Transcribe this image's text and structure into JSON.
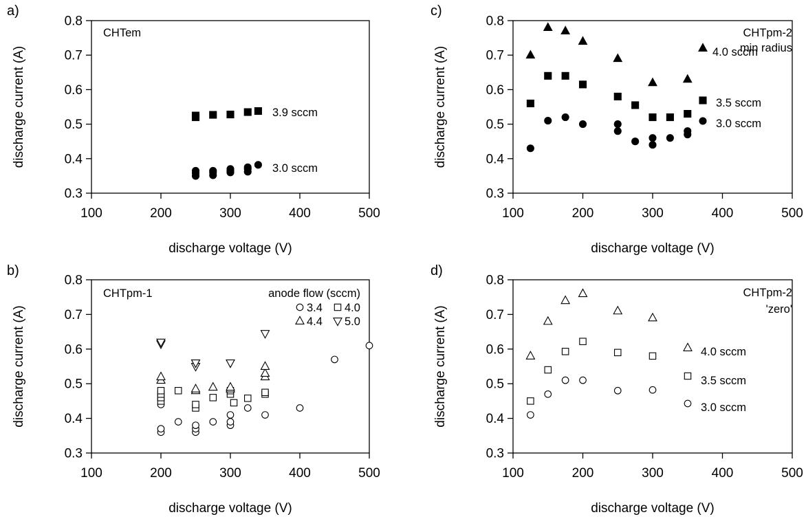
{
  "chart_data": [
    {
      "panel": "a)",
      "type": "scatter",
      "inset_title": [
        "CHTem"
      ],
      "xlabel": "discharge voltage (V)",
      "ylabel": "discharge current (A)",
      "xlim": [
        100,
        500
      ],
      "ylim": [
        0.3,
        0.8
      ],
      "xticks": [
        "100",
        "200",
        "300",
        "400",
        "500"
      ],
      "yticks": [
        "0.3",
        "0.4",
        "0.5",
        "0.6",
        "0.7",
        "0.8"
      ],
      "series": [
        {
          "label": "3.9 sccm",
          "marker": "filled-square",
          "points": [
            [
              250,
              0.52
            ],
            [
              250,
              0.525
            ],
            [
              275,
              0.527
            ],
            [
              300,
              0.528
            ],
            [
              325,
              0.535
            ],
            [
              340,
              0.538
            ]
          ]
        },
        {
          "label": "3.0 sccm",
          "marker": "filled-circle",
          "points": [
            [
              250,
              0.35
            ],
            [
              250,
              0.358
            ],
            [
              250,
              0.365
            ],
            [
              275,
              0.352
            ],
            [
              275,
              0.36
            ],
            [
              275,
              0.365
            ],
            [
              300,
              0.36
            ],
            [
              300,
              0.365
            ],
            [
              300,
              0.37
            ],
            [
              325,
              0.362
            ],
            [
              325,
              0.37
            ],
            [
              325,
              0.375
            ],
            [
              340,
              0.382
            ]
          ]
        }
      ]
    },
    {
      "panel": "b)",
      "type": "scatter",
      "inset_title": [
        "CHTpm-1"
      ],
      "legend_title": "anode flow (sccm)",
      "xlabel": "discharge voltage (V)",
      "ylabel": "discharge current (A)",
      "xlim": [
        100,
        500
      ],
      "ylim": [
        0.3,
        0.8
      ],
      "xticks": [
        "100",
        "200",
        "300",
        "400",
        "500"
      ],
      "yticks": [
        "0.3",
        "0.4",
        "0.5",
        "0.6",
        "0.7",
        "0.8"
      ],
      "series": [
        {
          "label": "3.4",
          "marker": "open-circle",
          "points": [
            [
              200,
              0.36
            ],
            [
              200,
              0.37
            ],
            [
              200,
              0.44
            ],
            [
              225,
              0.39
            ],
            [
              250,
              0.36
            ],
            [
              250,
              0.37
            ],
            [
              250,
              0.38
            ],
            [
              275,
              0.39
            ],
            [
              300,
              0.38
            ],
            [
              300,
              0.39
            ],
            [
              300,
              0.41
            ],
            [
              325,
              0.43
            ],
            [
              350,
              0.41
            ],
            [
              400,
              0.43
            ],
            [
              450,
              0.57
            ],
            [
              500,
              0.61
            ]
          ]
        },
        {
          "label": "4.0",
          "marker": "open-square",
          "points": [
            [
              200,
              0.45
            ],
            [
              200,
              0.46
            ],
            [
              200,
              0.47
            ],
            [
              200,
              0.48
            ],
            [
              225,
              0.48
            ],
            [
              250,
              0.43
            ],
            [
              250,
              0.44
            ],
            [
              275,
              0.46
            ],
            [
              300,
              0.47
            ],
            [
              300,
              0.48
            ],
            [
              305,
              0.445
            ],
            [
              325,
              0.458
            ],
            [
              350,
              0.47
            ],
            [
              350,
              0.475
            ]
          ]
        },
        {
          "label": "4.4",
          "marker": "open-triangle-up",
          "points": [
            [
              200,
              0.51
            ],
            [
              200,
              0.52
            ],
            [
              250,
              0.48
            ],
            [
              250,
              0.485
            ],
            [
              275,
              0.49
            ],
            [
              300,
              0.485
            ],
            [
              300,
              0.49
            ],
            [
              350,
              0.52
            ],
            [
              350,
              0.53
            ],
            [
              350,
              0.55
            ]
          ]
        },
        {
          "label": "5.0",
          "marker": "open-triangle-down",
          "points": [
            [
              200,
              0.615
            ],
            [
              200,
              0.62
            ],
            [
              250,
              0.55
            ],
            [
              250,
              0.56
            ],
            [
              300,
              0.56
            ],
            [
              350,
              0.645
            ]
          ]
        }
      ]
    },
    {
      "panel": "c)",
      "type": "scatter",
      "inset_title": [
        "CHTpm-2",
        "min radius"
      ],
      "xlabel": "discharge voltage (V)",
      "ylabel": "discharge current (A)",
      "xlim": [
        100,
        500
      ],
      "ylim": [
        0.3,
        0.8
      ],
      "xticks": [
        "100",
        "200",
        "300",
        "400",
        "500"
      ],
      "yticks": [
        "0.3",
        "0.4",
        "0.5",
        "0.6",
        "0.7",
        "0.8"
      ],
      "series": [
        {
          "label": "4.0 sccm",
          "marker": "filled-triangle-up",
          "points": [
            [
              125,
              0.7
            ],
            [
              150,
              0.78
            ],
            [
              175,
              0.77
            ],
            [
              200,
              0.74
            ],
            [
              250,
              0.69
            ],
            [
              300,
              0.62
            ],
            [
              350,
              0.63
            ]
          ]
        },
        {
          "label": "3.5 sccm",
          "marker": "filled-square",
          "points": [
            [
              125,
              0.56
            ],
            [
              150,
              0.64
            ],
            [
              175,
              0.64
            ],
            [
              200,
              0.615
            ],
            [
              250,
              0.58
            ],
            [
              275,
              0.555
            ],
            [
              300,
              0.52
            ],
            [
              325,
              0.52
            ],
            [
              350,
              0.53
            ]
          ]
        },
        {
          "label": "3.0 sccm",
          "marker": "filled-circle",
          "points": [
            [
              125,
              0.43
            ],
            [
              150,
              0.51
            ],
            [
              175,
              0.52
            ],
            [
              200,
              0.5
            ],
            [
              250,
              0.48
            ],
            [
              250,
              0.5
            ],
            [
              275,
              0.45
            ],
            [
              300,
              0.44
            ],
            [
              300,
              0.46
            ],
            [
              325,
              0.46
            ],
            [
              350,
              0.47
            ],
            [
              350,
              0.48
            ]
          ]
        }
      ]
    },
    {
      "panel": "d)",
      "type": "scatter",
      "inset_title": [
        "CHTpm-2",
        "'zero'"
      ],
      "xlabel": "discharge voltage (V)",
      "ylabel": "discharge current (A)",
      "xlim": [
        100,
        500
      ],
      "ylim": [
        0.3,
        0.8
      ],
      "xticks": [
        "100",
        "200",
        "300",
        "400",
        "500"
      ],
      "yticks": [
        "0.3",
        "0.4",
        "0.5",
        "0.6",
        "0.7",
        "0.8"
      ],
      "series": [
        {
          "label": "4.0 sccm",
          "marker": "open-triangle-up",
          "points": [
            [
              125,
              0.58
            ],
            [
              150,
              0.68
            ],
            [
              175,
              0.74
            ],
            [
              200,
              0.76
            ],
            [
              250,
              0.71
            ],
            [
              300,
              0.69
            ]
          ]
        },
        {
          "label": "3.5 sccm",
          "marker": "open-square",
          "points": [
            [
              125,
              0.45
            ],
            [
              150,
              0.54
            ],
            [
              175,
              0.593
            ],
            [
              200,
              0.622
            ],
            [
              250,
              0.59
            ],
            [
              300,
              0.58
            ]
          ]
        },
        {
          "label": "3.0 sccm",
          "marker": "open-circle",
          "points": [
            [
              125,
              0.41
            ],
            [
              150,
              0.47
            ],
            [
              175,
              0.51
            ],
            [
              200,
              0.51
            ],
            [
              250,
              0.48
            ],
            [
              300,
              0.482
            ]
          ]
        }
      ]
    }
  ]
}
